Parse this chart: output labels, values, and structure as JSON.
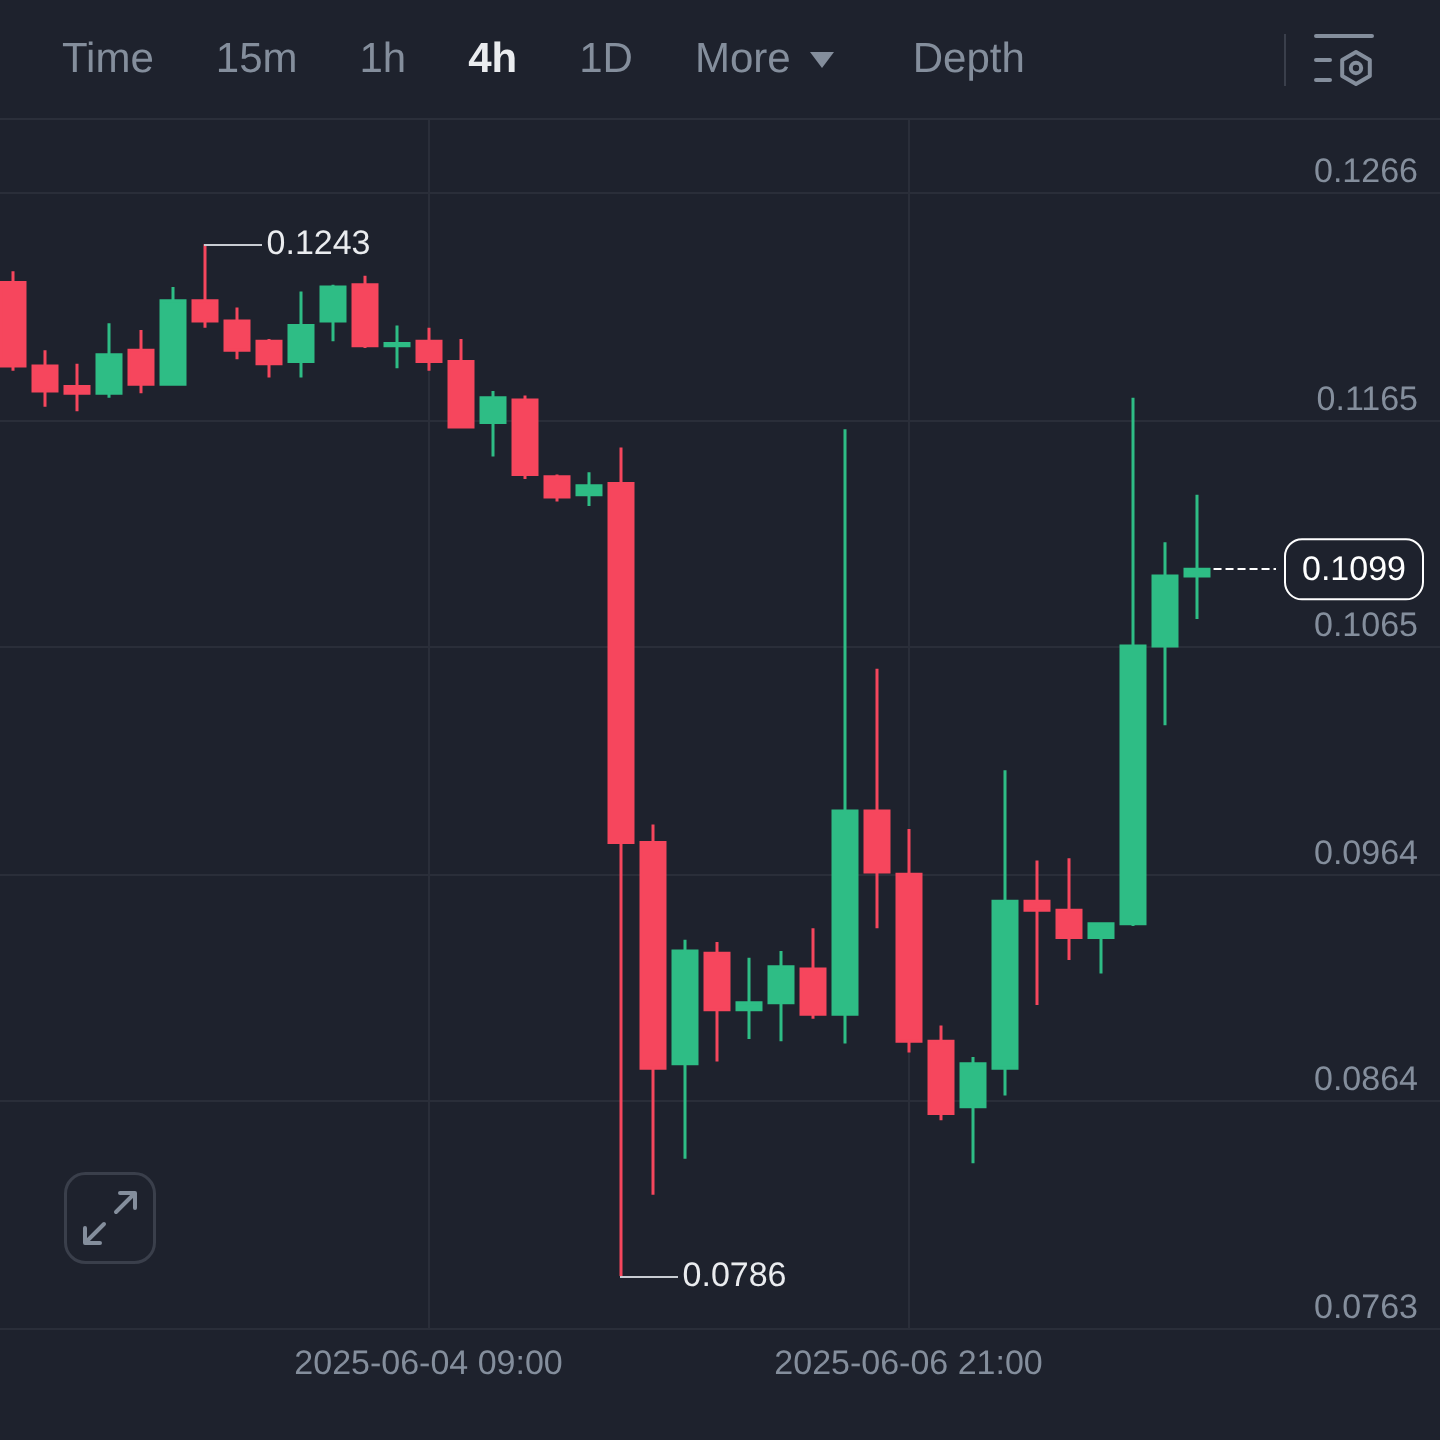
{
  "chart_data": {
    "type": "candlestick",
    "x": [
      "2025-06-02T05:00",
      "2025-06-02T09:00",
      "2025-06-02T13:00",
      "2025-06-02T17:00",
      "2025-06-02T21:00",
      "2025-06-03T01:00",
      "2025-06-03T05:00",
      "2025-06-03T09:00",
      "2025-06-03T13:00",
      "2025-06-03T17:00",
      "2025-06-03T21:00",
      "2025-06-04T01:00",
      "2025-06-04T05:00",
      "2025-06-04T09:00",
      "2025-06-04T13:00",
      "2025-06-04T17:00",
      "2025-06-04T21:00",
      "2025-06-05T01:00",
      "2025-06-05T05:00",
      "2025-06-05T09:00",
      "2025-06-05T13:00",
      "2025-06-05T17:00",
      "2025-06-05T21:00",
      "2025-06-06T01:00",
      "2025-06-06T05:00",
      "2025-06-06T09:00",
      "2025-06-06T13:00",
      "2025-06-06T17:00",
      "2025-06-06T21:00",
      "2025-06-07T01:00",
      "2025-06-07T05:00",
      "2025-06-07T09:00",
      "2025-06-07T13:00",
      "2025-06-07T17:00",
      "2025-06-07T21:00",
      "2025-06-08T01:00",
      "2025-06-08T05:00",
      "2025-06-08T09:00"
    ],
    "ohlc": [
      [
        0.1226,
        0.1231,
        0.1187,
        0.1189
      ],
      [
        0.1189,
        0.1196,
        0.1171,
        0.1178
      ],
      [
        0.118,
        0.119,
        0.1169,
        0.1177
      ],
      [
        0.1177,
        0.1208,
        0.1175,
        0.1194
      ],
      [
        0.1196,
        0.1205,
        0.1177,
        0.1181
      ],
      [
        0.1181,
        0.1224,
        0.1181,
        0.1218
      ],
      [
        0.1218,
        0.1243,
        0.1206,
        0.1209
      ],
      [
        0.1209,
        0.1215,
        0.1192,
        0.1196
      ],
      [
        0.12,
        0.1201,
        0.1184,
        0.119
      ],
      [
        0.1191,
        0.1222,
        0.1184,
        0.1207
      ],
      [
        0.1209,
        0.1225,
        0.12,
        0.1224
      ],
      [
        0.1225,
        0.1229,
        0.1197,
        0.1198
      ],
      [
        0.1198,
        0.1207,
        0.1188,
        0.1199
      ],
      [
        0.12,
        0.1206,
        0.1187,
        0.1191
      ],
      [
        0.1191,
        0.1201,
        0.1162,
        0.1162
      ],
      [
        0.1164,
        0.1178,
        0.1149,
        0.1175
      ],
      [
        0.1174,
        0.1176,
        0.1139,
        0.1141
      ],
      [
        0.114,
        0.1141,
        0.1129,
        0.1131
      ],
      [
        0.1132,
        0.1142,
        0.1127,
        0.1136
      ],
      [
        0.1137,
        0.1153,
        0.0786,
        0.0978
      ],
      [
        0.0978,
        0.0986,
        0.0822,
        0.0878
      ],
      [
        0.088,
        0.0935,
        0.0838,
        0.093
      ],
      [
        0.0929,
        0.0934,
        0.0881,
        0.0904
      ],
      [
        0.0904,
        0.0927,
        0.0891,
        0.0907
      ],
      [
        0.0907,
        0.093,
        0.089,
        0.0923
      ],
      [
        0.0922,
        0.094,
        0.09,
        0.0902
      ],
      [
        0.0902,
        0.1161,
        0.0889,
        0.0992
      ],
      [
        0.0992,
        0.1055,
        0.094,
        0.0965
      ],
      [
        0.0964,
        0.0984,
        0.0885,
        0.089
      ],
      [
        0.089,
        0.0897,
        0.0855,
        0.0858
      ],
      [
        0.0861,
        0.0883,
        0.0836,
        0.088
      ],
      [
        0.0878,
        0.101,
        0.0866,
        0.0952
      ],
      [
        0.0952,
        0.097,
        0.0906,
        0.0948
      ],
      [
        0.0948,
        0.0971,
        0.0926,
        0.0936
      ],
      [
        0.0936,
        0.0942,
        0.092,
        0.0942
      ],
      [
        0.0942,
        0.1175,
        0.0941,
        0.1065
      ],
      [
        0.1065,
        0.1111,
        0.103,
        0.1096
      ],
      [
        0.1096,
        0.1132,
        0.1077,
        0.1099
      ]
    ],
    "colors": [
      "#f6465d",
      "#f6465d",
      "#f6465d",
      "#2ebd85",
      "#f6465d",
      "#2ebd85",
      "#f6465d",
      "#f6465d",
      "#f6465d",
      "#2ebd85",
      "#2ebd85",
      "#f6465d",
      "#2ebd85",
      "#f6465d",
      "#f6465d",
      "#2ebd85",
      "#f6465d",
      "#f6465d",
      "#2ebd85",
      "#f6465d",
      "#f6465d",
      "#2ebd85",
      "#f6465d",
      "#2ebd85",
      "#2ebd85",
      "#f6465d",
      "#2ebd85",
      "#f6465d",
      "#f6465d",
      "#f6465d",
      "#2ebd85",
      "#2ebd85",
      "#f6465d",
      "#f6465d",
      "#2ebd85",
      "#2ebd85",
      "#2ebd85",
      "#2ebd85"
    ],
    "xlim": [
      "2025-06-02T03:26",
      "2025-06-09T15:26"
    ],
    "xticks": [
      {
        "value": "2025-06-04T09:00",
        "label": "2025-06-04 09:00"
      },
      {
        "value": "2025-06-06T21:00",
        "label": "2025-06-06 21:00"
      }
    ],
    "ylim": [
      0.0763,
      0.1298
    ],
    "yticks": [
      0.0763,
      0.0864,
      0.0964,
      0.1065,
      0.1165,
      0.1266
    ],
    "grid": true,
    "ref_lines": [
      {
        "axis": "y",
        "value": 0.1099,
        "label": "0.1099",
        "color": "#ffffff",
        "line_style": "dashed"
      }
    ],
    "annotations": [
      "Time",
      "15m",
      "1h",
      "4h",
      "1D",
      "More",
      "Depth",
      {
        "text": "0.1243",
        "x": "2025-06-03T05:00",
        "y": 0.1243
      },
      {
        "text": "0.0786",
        "x": "2025-06-05T09:00",
        "y": 0.0786
      }
    ]
  }
}
